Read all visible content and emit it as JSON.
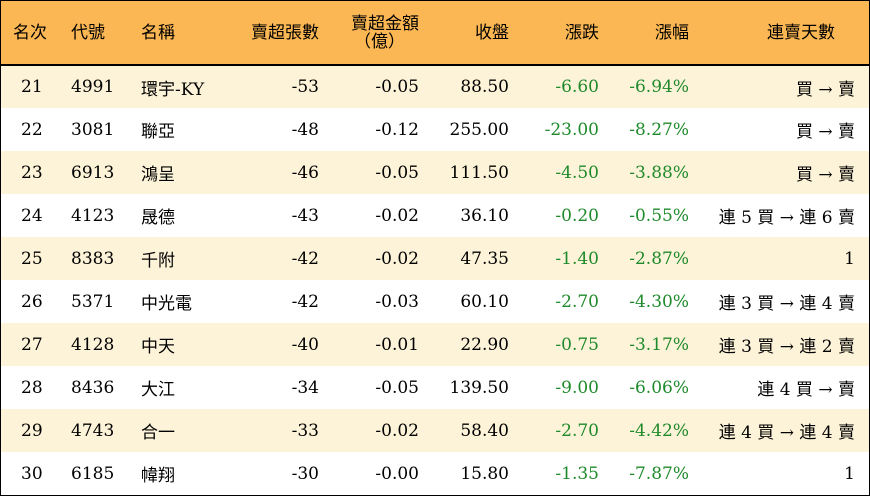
{
  "headers": {
    "rank": "名次",
    "code": "代號",
    "name": "名稱",
    "net_sell_lots": "賣超張數",
    "net_sell_amount_line1": "賣超金額",
    "net_sell_amount_line2": "（億）",
    "close": "收盤",
    "change": "漲跌",
    "change_pct": "漲幅",
    "streak": "連賣天數"
  },
  "rows": [
    {
      "rank": "21",
      "code": "4991",
      "name": "環宇-KY",
      "lots": "-53",
      "amount": "-0.05",
      "close": "88.50",
      "change": "-6.60",
      "pct": "-6.94%",
      "streak": "買 → 賣"
    },
    {
      "rank": "22",
      "code": "3081",
      "name": "聯亞",
      "lots": "-48",
      "amount": "-0.12",
      "close": "255.00",
      "change": "-23.00",
      "pct": "-8.27%",
      "streak": "買 → 賣"
    },
    {
      "rank": "23",
      "code": "6913",
      "name": "鴻呈",
      "lots": "-46",
      "amount": "-0.05",
      "close": "111.50",
      "change": "-4.50",
      "pct": "-3.88%",
      "streak": "買 → 賣"
    },
    {
      "rank": "24",
      "code": "4123",
      "name": "晟德",
      "lots": "-43",
      "amount": "-0.02",
      "close": "36.10",
      "change": "-0.20",
      "pct": "-0.55%",
      "streak": "連 5 買 → 連 6 賣"
    },
    {
      "rank": "25",
      "code": "8383",
      "name": "千附",
      "lots": "-42",
      "amount": "-0.02",
      "close": "47.35",
      "change": "-1.40",
      "pct": "-2.87%",
      "streak": "1"
    },
    {
      "rank": "26",
      "code": "5371",
      "name": "中光電",
      "lots": "-42",
      "amount": "-0.03",
      "close": "60.10",
      "change": "-2.70",
      "pct": "-4.30%",
      "streak": "連 3 買 → 連 4 賣"
    },
    {
      "rank": "27",
      "code": "4128",
      "name": "中天",
      "lots": "-40",
      "amount": "-0.01",
      "close": "22.90",
      "change": "-0.75",
      "pct": "-3.17%",
      "streak": "連 3 買 → 連 2 賣"
    },
    {
      "rank": "28",
      "code": "8436",
      "name": "大江",
      "lots": "-34",
      "amount": "-0.05",
      "close": "139.50",
      "change": "-9.00",
      "pct": "-6.06%",
      "streak": "連 4 買 → 賣"
    },
    {
      "rank": "29",
      "code": "4743",
      "name": "合一",
      "lots": "-33",
      "amount": "-0.02",
      "close": "58.40",
      "change": "-2.70",
      "pct": "-4.42%",
      "streak": "連 4 買 → 連 4 賣"
    },
    {
      "rank": "30",
      "code": "6185",
      "name": "幃翔",
      "lots": "-30",
      "amount": "-0.00",
      "close": "15.80",
      "change": "-1.35",
      "pct": "-7.87%",
      "streak": "1"
    }
  ],
  "colors": {
    "header_bg": "#fbb753",
    "stripe_bg": "#fdf3d8",
    "down_text": "#1f8a2b"
  }
}
